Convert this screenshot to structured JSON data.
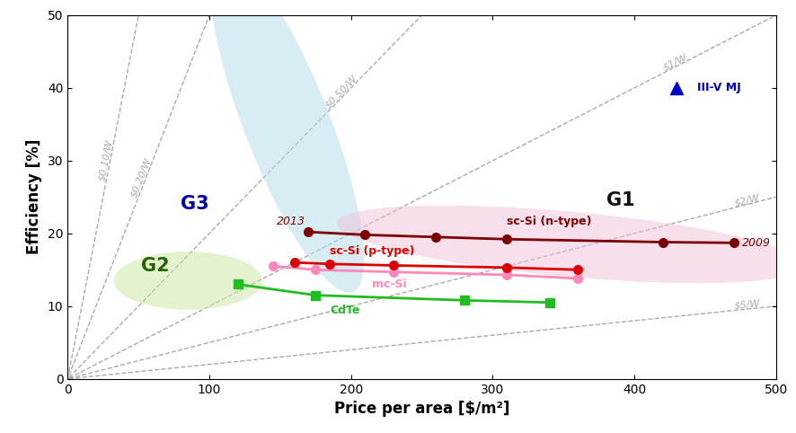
{
  "chart_data": {
    "type": "line",
    "xlabel": "Price per area [$/m²]",
    "ylabel": "Efficiency [%]",
    "xlim": [
      0,
      500
    ],
    "ylim": [
      0,
      50
    ],
    "xticks": [
      0,
      100,
      200,
      300,
      400,
      500
    ],
    "yticks": [
      0,
      10,
      20,
      30,
      40,
      50
    ],
    "grid": false,
    "guides": [
      {
        "x": [
          1,
          50
        ],
        "y": [
          1,
          50
        ],
        "color": "#aaaaaa",
        "line_style": "dashed",
        "label": {
          "text": "$0.10/W",
          "x": 30,
          "y": 30
        }
      },
      {
        "x": [
          1,
          100
        ],
        "y": [
          0.5,
          50
        ],
        "color": "#aaaaaa",
        "line_style": "dashed",
        "label": {
          "text": "$0.20/W",
          "x": 55,
          "y": 27.5
        }
      },
      {
        "x": [
          1,
          250
        ],
        "y": [
          0.2,
          50
        ],
        "color": "#aaaaaa",
        "line_style": "dashed",
        "label": {
          "text": "$0.50/W",
          "x": 195,
          "y": 39
        }
      },
      {
        "x": [
          1,
          500
        ],
        "y": [
          0.1,
          50
        ],
        "color": "#aaaaaa",
        "line_style": "dashed",
        "label": {
          "text": "$1/W",
          "x": 430,
          "y": 43
        }
      },
      {
        "x": [
          1,
          500
        ],
        "y": [
          0.05,
          25
        ],
        "color": "#aaaaaa",
        "line_style": "dashed",
        "label": {
          "text": "$2/W",
          "x": 480,
          "y": 24
        }
      },
      {
        "x": [
          1,
          500
        ],
        "y": [
          0.02,
          10
        ],
        "color": "#aaaaaa",
        "line_style": "dashed",
        "label": {
          "text": "$5/W",
          "x": 480,
          "y": 9.6
        }
      }
    ],
    "regions": [
      {
        "label": "G3",
        "cx": 155,
        "cy": 35,
        "width": 115,
        "height": 26,
        "angle": -20,
        "color": "#b0dde8",
        "label_x": 90,
        "label_y": 24,
        "label_color": "#0000aa"
      },
      {
        "label": "G1",
        "cx": 355,
        "cy": 18.5,
        "width": 330,
        "height": 9,
        "angle": -1,
        "color": "#f0c0d8",
        "label_x": 390,
        "label_y": 24.5,
        "label_color": "#111111"
      },
      {
        "label": "G2",
        "cx": 85,
        "cy": 13.5,
        "width": 105,
        "height": 8,
        "angle": 0,
        "color": "#c8e8a0",
        "label_x": 62,
        "label_y": 15.5,
        "label_color": "#226600"
      }
    ],
    "series": [
      {
        "x": [
          145,
          175,
          230,
          310,
          360
        ],
        "values": [
          15.5,
          15.0,
          14.7,
          14.3,
          13.8
        ],
        "color": "#ff88bb",
        "marker": "circle",
        "line_style": "solid",
        "label": {
          "text": "mc-Si",
          "x": 215,
          "y": 13.8
        }
      },
      {
        "x": [
          120,
          175,
          280,
          340
        ],
        "values": [
          13.0,
          11.5,
          10.8,
          10.5
        ],
        "color": "#22bb22",
        "marker": "square",
        "line_style": "solid",
        "label": {
          "text": "CdTe",
          "x": 185,
          "y": 10.2
        }
      },
      {
        "x": [
          160,
          185,
          230,
          310,
          360
        ],
        "values": [
          16.0,
          15.8,
          15.6,
          15.3,
          15.0
        ],
        "color": "#dd0000",
        "marker": "circle",
        "line_style": "solid",
        "label": {
          "text": "sc-Si (p-type)",
          "x": 185,
          "y": 16.8
        }
      },
      {
        "x": [
          170,
          210,
          260,
          310,
          420,
          470
        ],
        "values": [
          20.2,
          19.8,
          19.5,
          19.2,
          18.8,
          18.7
        ],
        "color": "#7B0000",
        "marker": "circle",
        "line_style": "solid",
        "label": {
          "text": "sc-Si (n-type)",
          "x": 310,
          "y": 20.8
        }
      },
      {
        "type": "scatter",
        "x": [
          430
        ],
        "values": [
          40
        ],
        "color": "#0000cc",
        "marker": "triangle",
        "line_style": "none",
        "label": {
          "text": "III-V MJ",
          "x": 444,
          "y": 40
        }
      }
    ],
    "annotations": [
      {
        "text": "2013",
        "x": 168,
        "y": 20.9,
        "color": "#7B0000"
      },
      {
        "text": "2009",
        "x": 476,
        "y": 18.7,
        "color": "#7B0000"
      }
    ]
  }
}
